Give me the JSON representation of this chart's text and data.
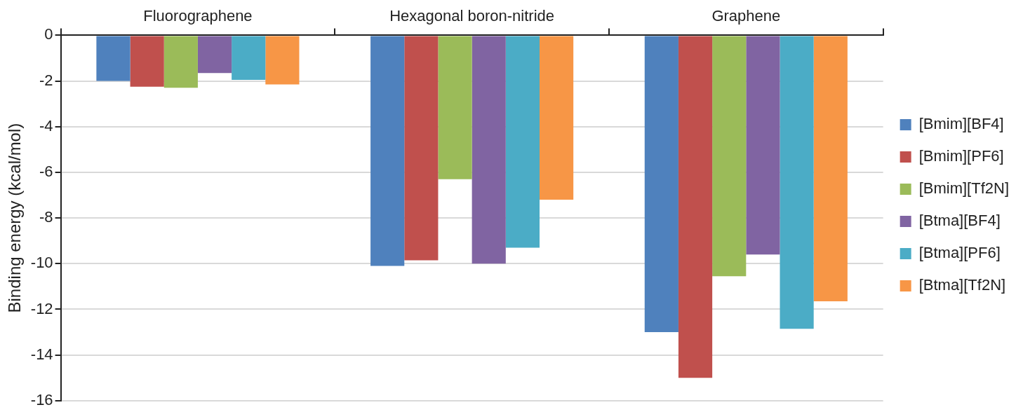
{
  "chart_data": {
    "type": "bar",
    "ylabel": "Binding energy (kcal/mol)",
    "categories": [
      "Fluorographene",
      "Hexagonal boron-nitride",
      "Graphene"
    ],
    "series": [
      {
        "name": "[Bmim][BF4]",
        "color": "#4f81bd",
        "values": [
          -2.0,
          -10.1,
          -13.0
        ]
      },
      {
        "name": "[Bmim][PF6]",
        "color": "#c0504d",
        "values": [
          -2.25,
          -9.85,
          -15.0
        ]
      },
      {
        "name": "[Bmim][Tf2N]",
        "color": "#9bbb59",
        "values": [
          -2.3,
          -6.3,
          -10.55
        ]
      },
      {
        "name": "[Btma][BF4]",
        "color": "#8064a2",
        "values": [
          -1.65,
          -10.0,
          -9.6
        ]
      },
      {
        "name": "[Btma][PF6]",
        "color": "#4bacc6",
        "values": [
          -1.95,
          -9.3,
          -12.85
        ]
      },
      {
        "name": "[Btma][Tf2N]",
        "color": "#f79646",
        "values": [
          -2.15,
          -7.2,
          -11.65
        ]
      }
    ],
    "ylim": [
      -16,
      0
    ],
    "yticks": [
      -16,
      -14,
      -12,
      -10,
      -8,
      -6,
      -4,
      -2,
      0
    ],
    "grid": "y",
    "legend": "right"
  }
}
